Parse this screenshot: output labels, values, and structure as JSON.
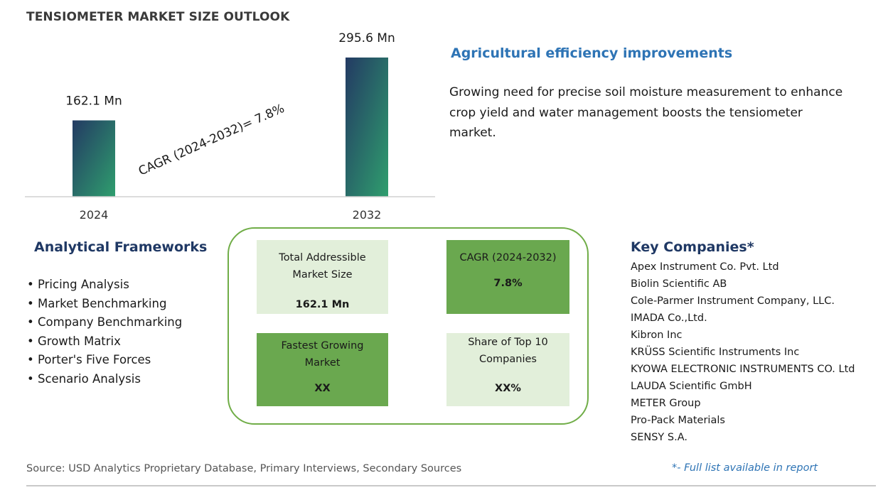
{
  "header": {
    "title": "TENSIOMETER MARKET SIZE OUTLOOK"
  },
  "chart_data": {
    "type": "bar",
    "title": "TENSIOMETER MARKET SIZE OUTLOOK",
    "categories": [
      "2024",
      "2032"
    ],
    "values": [
      162.1,
      295.6
    ],
    "value_labels": [
      "162.1 Mn",
      "295.6 Mn"
    ],
    "unit": "Mn",
    "xlabel": "",
    "ylabel": "",
    "grid": false,
    "annotation": "CAGR (2024-2032)=   7.8%"
  },
  "colors": {
    "bar_gradient_top": "#233a63",
    "bar_gradient_bottom": "#2f9e6e",
    "box_border": "#70ad47",
    "tile_light": "#e2efda",
    "tile_dark": "#6aa84f",
    "heading_blue": "#2e74b5",
    "heading_navy": "#1f3864"
  },
  "insight": {
    "heading": "Agricultural efficiency improvements",
    "text": "Growing need for precise soil moisture measurement to enhance crop yield and water management boosts the tensiometer market."
  },
  "frameworks": {
    "title": "Analytical Frameworks",
    "items": [
      "Pricing Analysis",
      "Market Benchmarking",
      "Company Benchmarking",
      "Growth Matrix",
      "Porter's Five Forces",
      "Scenario Analysis"
    ]
  },
  "metrics": {
    "tam": {
      "label": "Total Addressible Market Size",
      "value": "162.1 Mn"
    },
    "cagr": {
      "label": "CAGR (2024-2032)",
      "value": "7.8%"
    },
    "fastest": {
      "label": "Fastest Growing Market",
      "value": "XX"
    },
    "share": {
      "label": "Share of Top 10 Companies",
      "value": "XX%"
    }
  },
  "companies": {
    "title": "Key Companies*",
    "items": [
      "Apex Instrument Co. Pvt. Ltd",
      "Biolin Scientific AB",
      "Cole-Parmer Instrument Company, LLC.",
      "IMADA Co.,Ltd.",
      "Kibron Inc",
      "KRÜSS Scientific Instruments Inc",
      "KYOWA ELECTRONIC INSTRUMENTS CO. Ltd",
      "LAUDA Scientific GmbH",
      "METER Group",
      "Pro-Pack Materials",
      "SENSY S.A."
    ],
    "note": "*- Full list available in report"
  },
  "footer": {
    "source": "Source: USD Analytics Proprietary Database, Primary Interviews, Secondary Sources"
  }
}
